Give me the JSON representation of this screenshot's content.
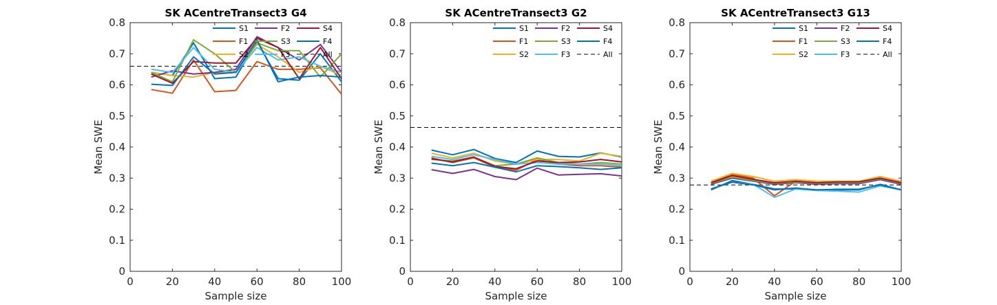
{
  "chart_data": [
    {
      "type": "line",
      "title": "SK ACentreTransect3 G4",
      "xlabel": "Sample size",
      "ylabel": "Mean SWE",
      "xlim": [
        0,
        100
      ],
      "ylim": [
        0,
        0.8
      ],
      "xticks": [
        "0",
        "20",
        "40",
        "60",
        "80",
        "100"
      ],
      "yticks": [
        "0",
        "0.1",
        "0.2",
        "0.3",
        "0.4",
        "0.5",
        "0.6",
        "0.7",
        "0.8"
      ],
      "legend_location": "top-right",
      "x": [
        10,
        20,
        30,
        40,
        50,
        60,
        70,
        80,
        90,
        100
      ],
      "series": [
        {
          "name": "S1",
          "color": "#0072BD",
          "values": [
            0.64,
            0.63,
            0.735,
            0.62,
            0.625,
            0.74,
            0.62,
            0.615,
            0.7,
            0.61
          ]
        },
        {
          "name": "F1",
          "color": "#D95319",
          "values": [
            0.585,
            0.573,
            0.68,
            0.578,
            0.582,
            0.675,
            0.65,
            0.65,
            0.655,
            0.57
          ]
        },
        {
          "name": "S2",
          "color": "#EDB120",
          "values": [
            0.64,
            0.63,
            0.625,
            0.64,
            0.64,
            0.73,
            0.69,
            0.64,
            0.66,
            0.63
          ]
        },
        {
          "name": "F2",
          "color": "#7E2F8E",
          "values": [
            0.625,
            0.645,
            0.635,
            0.64,
            0.65,
            0.755,
            0.72,
            0.68,
            0.73,
            0.64
          ]
        },
        {
          "name": "S3",
          "color": "#77AC30",
          "values": [
            0.64,
            0.61,
            0.745,
            0.7,
            0.64,
            0.735,
            0.71,
            0.71,
            0.625,
            0.7
          ]
        },
        {
          "name": "F3",
          "color": "#4DBEEE",
          "values": [
            0.65,
            0.64,
            0.72,
            0.65,
            0.64,
            0.72,
            0.68,
            0.69,
            0.66,
            0.64
          ]
        },
        {
          "name": "S4",
          "color": "#A2142F",
          "values": [
            0.635,
            0.605,
            0.675,
            0.67,
            0.67,
            0.75,
            0.72,
            0.62,
            0.72,
            0.62
          ]
        },
        {
          "name": "F4",
          "color": "#0072BD",
          "values": [
            0.602,
            0.598,
            0.69,
            0.635,
            0.64,
            0.745,
            0.61,
            0.625,
            0.63,
            0.625
          ]
        }
      ],
      "reference_line": {
        "name": "All",
        "value": 0.66,
        "style": "dashed",
        "color": "#000000"
      }
    },
    {
      "type": "line",
      "title": "SK ACentreTransect3 G2",
      "xlabel": "Sample size",
      "ylabel": "Mean SWE",
      "xlim": [
        0,
        100
      ],
      "ylim": [
        0,
        0.8
      ],
      "xticks": [
        "0",
        "20",
        "40",
        "60",
        "80",
        "100"
      ],
      "yticks": [
        "0",
        "0.1",
        "0.2",
        "0.3",
        "0.4",
        "0.5",
        "0.6",
        "0.7",
        "0.8"
      ],
      "legend_location": "top-right",
      "x": [
        10,
        20,
        30,
        40,
        50,
        60,
        70,
        80,
        90,
        100
      ],
      "series": [
        {
          "name": "S1",
          "color": "#0072BD",
          "values": [
            0.39,
            0.375,
            0.392,
            0.363,
            0.35,
            0.387,
            0.37,
            0.368,
            0.381,
            0.368
          ]
        },
        {
          "name": "F1",
          "color": "#D95319",
          "values": [
            0.365,
            0.35,
            0.365,
            0.335,
            0.325,
            0.36,
            0.345,
            0.34,
            0.34,
            0.335
          ]
        },
        {
          "name": "S2",
          "color": "#EDB120",
          "values": [
            0.38,
            0.365,
            0.38,
            0.355,
            0.345,
            0.36,
            0.36,
            0.355,
            0.38,
            0.37
          ]
        },
        {
          "name": "F2",
          "color": "#7E2F8E",
          "values": [
            0.327,
            0.315,
            0.328,
            0.305,
            0.295,
            0.332,
            0.31,
            0.312,
            0.314,
            0.307
          ]
        },
        {
          "name": "S3",
          "color": "#77AC30",
          "values": [
            0.36,
            0.355,
            0.367,
            0.34,
            0.345,
            0.365,
            0.35,
            0.345,
            0.35,
            0.345
          ]
        },
        {
          "name": "F3",
          "color": "#4DBEEE",
          "values": [
            0.37,
            0.36,
            0.375,
            0.36,
            0.345,
            0.35,
            0.345,
            0.345,
            0.345,
            0.34
          ]
        },
        {
          "name": "S4",
          "color": "#A2142F",
          "values": [
            0.362,
            0.352,
            0.368,
            0.338,
            0.33,
            0.355,
            0.35,
            0.352,
            0.36,
            0.352
          ]
        },
        {
          "name": "F4",
          "color": "#0072BD",
          "values": [
            0.348,
            0.34,
            0.35,
            0.335,
            0.32,
            0.34,
            0.337,
            0.333,
            0.328,
            0.333
          ]
        }
      ],
      "reference_line": {
        "name": "All",
        "value": 0.463,
        "style": "dashed",
        "color": "#000000"
      }
    },
    {
      "type": "line",
      "title": "SK ACentreTransect3 G13",
      "xlabel": "Sample size",
      "ylabel": "Mean SWE",
      "xlim": [
        0,
        100
      ],
      "ylim": [
        0,
        0.8
      ],
      "xticks": [
        "0",
        "20",
        "40",
        "60",
        "80",
        "100"
      ],
      "yticks": [
        "0",
        "0.1",
        "0.2",
        "0.3",
        "0.4",
        "0.5",
        "0.6",
        "0.7",
        "0.8"
      ],
      "legend_location": "top-right",
      "x": [
        10,
        20,
        30,
        40,
        50,
        60,
        70,
        80,
        90,
        100
      ],
      "series": [
        {
          "name": "S1",
          "color": "#0072BD",
          "values": [
            0.262,
            0.292,
            0.28,
            0.265,
            0.265,
            0.262,
            0.262,
            0.262,
            0.28,
            0.262
          ]
        },
        {
          "name": "F1",
          "color": "#D95319",
          "values": [
            0.285,
            0.312,
            0.3,
            0.243,
            0.29,
            0.285,
            0.285,
            0.285,
            0.3,
            0.285
          ]
        },
        {
          "name": "S2",
          "color": "#EDB120",
          "values": [
            0.29,
            0.315,
            0.305,
            0.29,
            0.295,
            0.29,
            0.29,
            0.29,
            0.305,
            0.29
          ]
        },
        {
          "name": "F2",
          "color": "#7E2F8E",
          "values": [
            0.28,
            0.3,
            0.29,
            0.28,
            0.285,
            0.28,
            0.282,
            0.282,
            0.295,
            0.28
          ]
        },
        {
          "name": "S3",
          "color": "#77AC30",
          "values": [
            0.283,
            0.303,
            0.292,
            0.283,
            0.287,
            0.283,
            0.285,
            0.285,
            0.298,
            0.283
          ]
        },
        {
          "name": "F3",
          "color": "#4DBEEE",
          "values": [
            0.265,
            0.287,
            0.28,
            0.238,
            0.265,
            0.26,
            0.258,
            0.255,
            0.275,
            0.262
          ]
        },
        {
          "name": "S4",
          "color": "#A2142F",
          "values": [
            0.285,
            0.308,
            0.296,
            0.285,
            0.29,
            0.285,
            0.288,
            0.288,
            0.3,
            0.285
          ]
        },
        {
          "name": "F4",
          "color": "#0072BD",
          "values": [
            0.265,
            0.287,
            0.278,
            0.262,
            0.268,
            0.262,
            0.264,
            0.264,
            0.278,
            0.262
          ]
        }
      ],
      "reference_line": {
        "name": "All",
        "value": 0.278,
        "style": "dashed",
        "color": "#000000"
      }
    }
  ]
}
